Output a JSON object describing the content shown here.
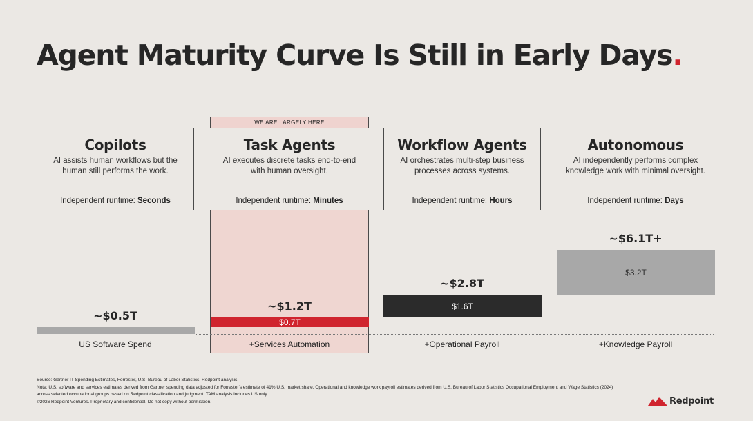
{
  "slide": {
    "title": "Agent Maturity Curve Is Still in Early Days",
    "title_dot": ".",
    "here_tag": "WE ARE LARGELY HERE"
  },
  "stages": [
    {
      "name": "Copilots",
      "description": "AI assists human workflows but the human still performs the work.",
      "runtime_label": "Independent runtime: ",
      "runtime_value": "Seconds"
    },
    {
      "name": "Task Agents",
      "description": "AI executes discrete tasks end-to-end with human oversight.",
      "runtime_label": "Independent runtime: ",
      "runtime_value": "Minutes"
    },
    {
      "name": "Workflow Agents",
      "description": "AI orchestrates multi-step business processes across systems.",
      "runtime_label": "Independent runtime: ",
      "runtime_value": "Hours"
    },
    {
      "name": "Autonomous",
      "description": "AI independently performs complex knowledge work with minimal oversight.",
      "runtime_label": "Independent runtime: ",
      "runtime_value": "Days"
    }
  ],
  "chart_data": {
    "type": "bar",
    "chart_style": "waterfall",
    "unit": "$T",
    "categories": [
      "US Software Spend",
      "+Services Automation",
      "+Operational Payroll",
      "+Knowledge Payroll"
    ],
    "increments": [
      0.5,
      0.7,
      1.6,
      3.2
    ],
    "increment_labels": [
      "",
      "$0.7T",
      "$1.6T",
      "$3.2T"
    ],
    "cumulative_totals": [
      0.5,
      1.2,
      2.8,
      6.1
    ],
    "total_labels": [
      "~$0.5T",
      "~$1.2T",
      "~$2.8T",
      "~$6.1T+"
    ],
    "bar_colors": [
      "#a8a8a8",
      "#d0242e",
      "#2b2b2b",
      "#a8a8a8"
    ],
    "highlight_category": "+Services Automation"
  },
  "colors": {
    "accent": "#d0242e",
    "background": "#ebe8e4",
    "highlight_panel": "#efd6d1"
  },
  "footnotes": [
    "Source: Gartner IT Spending Estimates, Forrester, U.S. Bureau of Labor Statistics, Redpoint analysis.",
    "Note: U.S. software and services estimates derived from Gartner spending data adjusted for Forrester's estimate of 41% U.S. market share. Operational and knowledge work payroll estimates derived from U.S. Bureau of Labor Statistics Occupational Employment and Wage Statistics (2024)",
    "across selected occupational groups based on Redpoint classification and judgment. TAM analysis includes US only.",
    "©2026 Redpoint Ventures. Proprietary and confidential. Do not copy without permission."
  ],
  "logo": {
    "text": "Redpoint",
    "icon": "redpoint-mountain-icon"
  }
}
